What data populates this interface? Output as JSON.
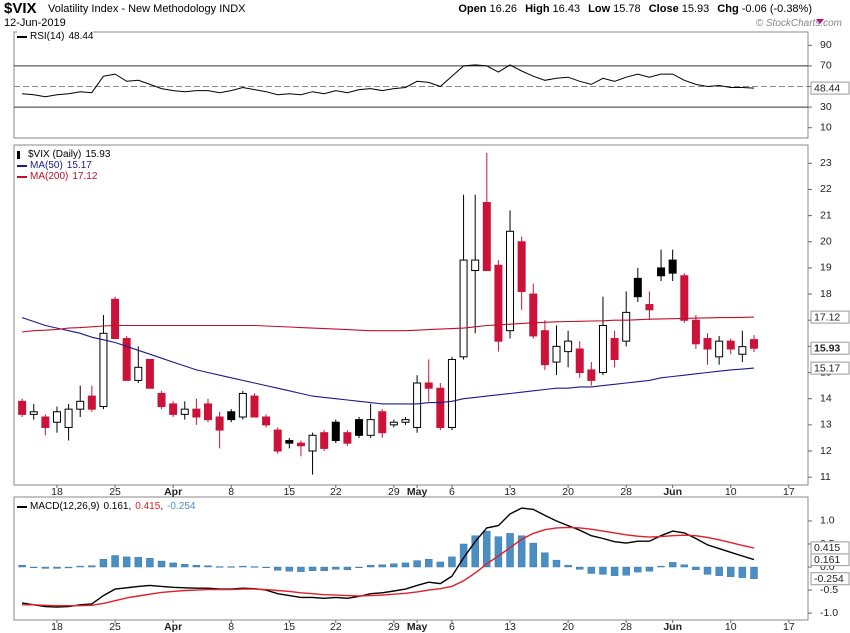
{
  "header": {
    "symbol": "$VIX",
    "name": "Volatility Index - New Methodology  INDX",
    "date": "12-Jun-2019",
    "quote": [
      [
        "Open",
        "16.26"
      ],
      [
        "High",
        "16.43"
      ],
      [
        "Low",
        "15.78"
      ],
      [
        "Close",
        "15.93"
      ],
      [
        "Chg",
        "-0.06 (-0.38%)"
      ]
    ],
    "credit": "© StockCharts.com"
  },
  "chart_data": [
    {
      "type": "line",
      "title": "RSI(14)",
      "color": "#000000",
      "values": [
        43,
        42,
        40,
        42,
        43,
        45,
        44,
        60,
        62,
        55,
        56,
        52,
        48,
        46,
        45,
        46,
        46,
        44,
        46,
        49,
        47,
        45,
        42,
        43,
        42,
        45,
        43,
        46,
        44,
        47,
        48,
        46,
        48,
        49,
        55,
        54,
        50,
        60,
        70,
        71,
        70,
        64,
        71,
        65,
        60,
        56,
        58,
        59,
        55,
        52,
        58,
        55,
        59,
        62,
        59,
        62,
        62,
        56,
        52,
        50,
        51,
        49,
        49,
        48.44
      ],
      "ylim": [
        0,
        100
      ],
      "yticks": [
        10,
        30,
        50,
        70,
        90
      ],
      "reference_lines": [
        {
          "value": 70,
          "style": "solid"
        },
        {
          "value": 50,
          "style": "dashed"
        },
        {
          "value": 30,
          "style": "solid"
        }
      ]
    },
    {
      "type": "candlestick",
      "title": "$VIX (Daily)",
      "up_color": "#000000",
      "down_color": "#cc1238",
      "categories": [
        null,
        null,
        null,
        "18",
        null,
        null,
        null,
        null,
        "25",
        null,
        null,
        null,
        null,
        "Apr",
        null,
        null,
        null,
        null,
        "8",
        null,
        null,
        null,
        null,
        "15",
        null,
        null,
        null,
        "22",
        null,
        null,
        null,
        null,
        "29",
        null,
        "May",
        null,
        null,
        "6",
        null,
        null,
        null,
        null,
        "13",
        null,
        null,
        null,
        null,
        "20",
        null,
        null,
        null,
        null,
        "28",
        null,
        null,
        null,
        "Jun",
        null,
        null,
        null,
        null,
        "10",
        null,
        null,
        null,
        null,
        "17"
      ],
      "open": [
        13.9,
        13.4,
        13.3,
        13.1,
        12.9,
        13.6,
        14.1,
        13.7,
        17.8,
        16.3,
        14.7,
        15.5,
        14.2,
        13.8,
        13.4,
        13.6,
        13.8,
        13.3,
        13.5,
        13.3,
        14.1,
        13.3,
        12.8,
        12.4,
        12.3,
        12.0,
        12.7,
        13.1,
        12.7,
        13.2,
        12.6,
        13.5,
        13.0,
        13.1,
        12.9,
        14.6,
        14.4,
        12.9,
        15.6,
        18.9,
        21.5,
        19.1,
        16.6,
        20.0,
        18.0,
        16.6,
        15.4,
        15.8,
        15.9,
        15.1,
        15.0,
        16.3,
        16.2,
        18.6,
        17.6,
        19.0,
        19.3,
        18.7,
        17.0,
        16.3,
        15.6,
        16.2,
        15.7,
        16.26,
        null,
        null,
        null
      ],
      "high": [
        14.0,
        13.8,
        13.4,
        13.7,
        13.8,
        14.5,
        14.5,
        17.2,
        17.9,
        16.4,
        16.0,
        15.5,
        14.3,
        13.9,
        13.9,
        14.0,
        14.0,
        13.5,
        13.6,
        14.3,
        14.2,
        13.4,
        12.9,
        12.5,
        12.4,
        12.7,
        12.8,
        13.2,
        12.8,
        13.3,
        13.8,
        13.6,
        13.2,
        13.3,
        14.9,
        15.5,
        14.6,
        15.6,
        21.8,
        21.8,
        23.4,
        19.3,
        21.2,
        20.2,
        18.4,
        17.0,
        16.8,
        16.6,
        16.2,
        15.4,
        17.9,
        16.6,
        18.1,
        19.0,
        18.1,
        19.7,
        19.7,
        18.8,
        17.2,
        16.5,
        16.4,
        16.3,
        16.6,
        16.43,
        null,
        null,
        null
      ],
      "low": [
        13.3,
        13.2,
        12.6,
        12.7,
        12.4,
        13.3,
        13.5,
        13.6,
        16.3,
        14.7,
        14.6,
        14.4,
        13.6,
        13.3,
        13.2,
        13.0,
        13.1,
        12.1,
        13.1,
        13.2,
        13.3,
        12.9,
        11.9,
        12.1,
        11.8,
        11.1,
        12.0,
        12.3,
        12.2,
        12.5,
        12.5,
        12.5,
        12.9,
        13.0,
        12.7,
        13.9,
        12.8,
        12.8,
        15.5,
        16.5,
        18.9,
        15.8,
        16.3,
        17.4,
        16.3,
        15.1,
        14.9,
        15.2,
        14.8,
        14.5,
        14.9,
        15.2,
        16.0,
        17.7,
        17.0,
        18.5,
        18.5,
        16.9,
        15.9,
        15.3,
        15.3,
        15.7,
        15.4,
        15.78,
        null,
        null,
        null
      ],
      "close": [
        13.4,
        13.5,
        12.9,
        13.5,
        13.6,
        13.9,
        13.6,
        16.5,
        16.3,
        14.7,
        15.2,
        14.4,
        13.7,
        13.4,
        13.6,
        13.3,
        13.2,
        12.8,
        13.2,
        14.2,
        13.3,
        13.0,
        12.0,
        12.3,
        12.2,
        12.6,
        12.1,
        12.4,
        12.3,
        12.6,
        13.2,
        12.7,
        13.1,
        13.2,
        14.6,
        14.4,
        12.9,
        15.5,
        19.3,
        19.3,
        18.9,
        16.2,
        20.4,
        18.1,
        16.4,
        15.3,
        16.0,
        16.2,
        15.0,
        14.7,
        16.8,
        15.5,
        17.3,
        17.9,
        17.4,
        18.7,
        18.8,
        17.0,
        16.1,
        15.9,
        16.2,
        15.9,
        15.99,
        15.93,
        null,
        null,
        null
      ],
      "series": [
        {
          "name": "MA(50)",
          "color": "#1b1b8a",
          "values": [
            17.1,
            16.95,
            16.8,
            16.7,
            16.6,
            16.5,
            16.35,
            16.25,
            16.15,
            16.0,
            15.85,
            15.7,
            15.55,
            15.4,
            15.25,
            15.1,
            15.0,
            14.9,
            14.8,
            14.7,
            14.6,
            14.5,
            14.4,
            14.3,
            14.2,
            14.1,
            14.05,
            14.0,
            13.95,
            13.9,
            13.85,
            13.8,
            13.8,
            13.8,
            13.8,
            13.85,
            13.85,
            13.9,
            14.0,
            14.05,
            14.1,
            14.15,
            14.2,
            14.25,
            14.3,
            14.35,
            14.4,
            14.4,
            14.45,
            14.45,
            14.5,
            14.55,
            14.6,
            14.65,
            14.7,
            14.8,
            14.85,
            14.9,
            14.95,
            15.0,
            15.05,
            15.1,
            15.13,
            15.17,
            null,
            null,
            null
          ]
        },
        {
          "name": "MA(200)",
          "color": "#c0102c",
          "values": [
            16.55,
            16.6,
            16.62,
            16.65,
            16.7,
            16.72,
            16.75,
            16.78,
            16.8,
            16.8,
            16.8,
            16.8,
            16.8,
            16.8,
            16.8,
            16.8,
            16.8,
            16.8,
            16.8,
            16.8,
            16.8,
            16.78,
            16.76,
            16.74,
            16.72,
            16.7,
            16.68,
            16.66,
            16.64,
            16.62,
            16.6,
            16.6,
            16.6,
            16.6,
            16.62,
            16.64,
            16.66,
            16.68,
            16.7,
            16.75,
            16.8,
            16.82,
            16.85,
            16.88,
            16.9,
            16.92,
            16.94,
            16.95,
            16.96,
            16.97,
            16.98,
            17.0,
            17.0,
            17.02,
            17.04,
            17.05,
            17.06,
            17.07,
            17.08,
            17.09,
            17.1,
            17.1,
            17.11,
            17.12,
            null,
            null,
            null
          ]
        }
      ],
      "ylim": [
        10.7,
        23.7
      ],
      "yticks": [
        11,
        12,
        13,
        14,
        15,
        16,
        17,
        18,
        19,
        20,
        21,
        22,
        23
      ]
    },
    {
      "type": "macd",
      "title": "MACD(12,26,9)",
      "categories": [
        null,
        null,
        null,
        "18",
        null,
        null,
        null,
        null,
        "25",
        null,
        null,
        null,
        null,
        "Apr",
        null,
        null,
        null,
        null,
        "8",
        null,
        null,
        null,
        null,
        "15",
        null,
        null,
        null,
        "22",
        null,
        null,
        null,
        null,
        "29",
        null,
        "May",
        null,
        null,
        "6",
        null,
        null,
        null,
        null,
        "13",
        null,
        null,
        null,
        null,
        "20",
        null,
        null,
        null,
        null,
        "28",
        null,
        null,
        null,
        "Jun",
        null,
        null,
        null,
        null,
        "10",
        null,
        null,
        null,
        null,
        "17"
      ],
      "series": [
        {
          "style": "histogram",
          "color": "#4a8fc4",
          "values": [
            0.04,
            0.0,
            -0.03,
            -0.03,
            -0.02,
            0.02,
            0.03,
            0.17,
            0.25,
            0.22,
            0.21,
            0.19,
            0.13,
            0.09,
            0.06,
            0.04,
            0.03,
            0.01,
            0.01,
            0.02,
            0.01,
            -0.01,
            -0.07,
            -0.09,
            -0.1,
            -0.08,
            -0.08,
            -0.05,
            -0.06,
            -0.01,
            0.04,
            0.05,
            0.07,
            0.09,
            0.14,
            0.17,
            0.11,
            0.22,
            0.5,
            0.68,
            0.78,
            0.66,
            0.73,
            0.68,
            0.52,
            0.31,
            0.15,
            0.04,
            -0.05,
            -0.14,
            -0.16,
            -0.19,
            -0.18,
            -0.11,
            -0.09,
            0.02,
            0.1,
            0.05,
            -0.06,
            -0.16,
            -0.19,
            -0.21,
            -0.23,
            -0.254,
            null,
            null,
            null
          ]
        },
        {
          "style": "line",
          "color": "#000000",
          "values": [
            -0.78,
            -0.82,
            -0.86,
            -0.87,
            -0.86,
            -0.82,
            -0.8,
            -0.62,
            -0.48,
            -0.45,
            -0.42,
            -0.4,
            -0.42,
            -0.44,
            -0.45,
            -0.46,
            -0.46,
            -0.48,
            -0.48,
            -0.46,
            -0.47,
            -0.5,
            -0.58,
            -0.62,
            -0.66,
            -0.66,
            -0.68,
            -0.66,
            -0.68,
            -0.64,
            -0.58,
            -0.56,
            -0.52,
            -0.48,
            -0.4,
            -0.33,
            -0.36,
            -0.2,
            0.2,
            0.55,
            0.85,
            0.9,
            1.15,
            1.28,
            1.25,
            1.12,
            1.0,
            0.9,
            0.8,
            0.68,
            0.62,
            0.55,
            0.52,
            0.56,
            0.56,
            0.68,
            0.78,
            0.74,
            0.62,
            0.48,
            0.4,
            0.32,
            0.24,
            0.161,
            null,
            null,
            null
          ]
        },
        {
          "style": "line",
          "color": "#e0202a",
          "values": [
            -0.82,
            -0.82,
            -0.83,
            -0.84,
            -0.84,
            -0.84,
            -0.83,
            -0.79,
            -0.73,
            -0.67,
            -0.63,
            -0.59,
            -0.55,
            -0.53,
            -0.51,
            -0.5,
            -0.49,
            -0.49,
            -0.49,
            -0.48,
            -0.48,
            -0.49,
            -0.51,
            -0.53,
            -0.56,
            -0.58,
            -0.6,
            -0.61,
            -0.62,
            -0.63,
            -0.62,
            -0.61,
            -0.59,
            -0.57,
            -0.54,
            -0.5,
            -0.47,
            -0.42,
            -0.3,
            -0.13,
            0.07,
            0.24,
            0.42,
            0.6,
            0.73,
            0.81,
            0.85,
            0.86,
            0.85,
            0.82,
            0.78,
            0.74,
            0.7,
            0.67,
            0.65,
            0.66,
            0.68,
            0.69,
            0.68,
            0.64,
            0.59,
            0.53,
            0.47,
            0.415,
            null,
            null,
            null
          ]
        }
      ],
      "legend_order": [
        1,
        2,
        0
      ],
      "ylim": [
        -1.15,
        1.52
      ],
      "yticks": [
        {
          "value": 1,
          "label": "1.0"
        },
        {
          "value": 0.5,
          "label": "0.5"
        },
        {
          "value": 0,
          "label": "0.0"
        },
        {
          "value": -0.5,
          "label": "-0.5"
        },
        {
          "value": -1,
          "label": "-1.0"
        }
      ]
    }
  ]
}
